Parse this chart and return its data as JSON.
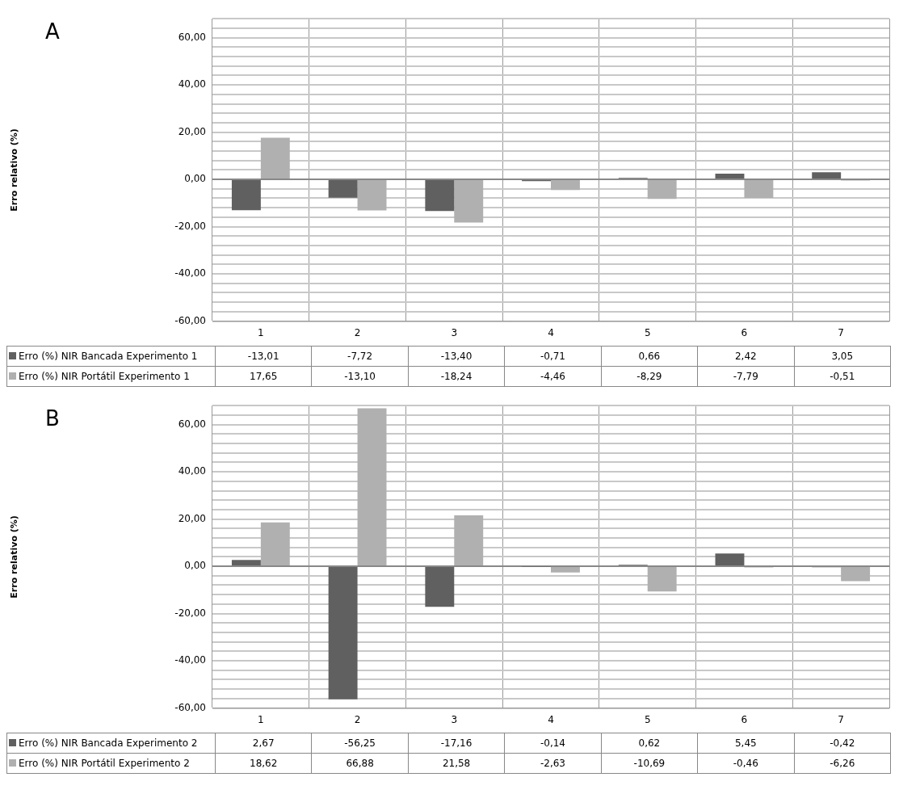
{
  "chart_data": [
    {
      "type": "bar",
      "title": "A",
      "ylabel": "Erro relativo (%)",
      "categories": [
        "1",
        "2",
        "3",
        "4",
        "5",
        "6",
        "7"
      ],
      "ylim": [
        -60,
        68
      ],
      "yticks": [
        {
          "value": -60,
          "label": "-60,00"
        },
        {
          "value": -56,
          "label": null
        },
        {
          "value": -52,
          "label": null
        },
        {
          "value": -48,
          "label": null
        },
        {
          "value": -44,
          "label": null
        },
        {
          "value": -40,
          "label": "-40,00"
        },
        {
          "value": -36,
          "label": null
        },
        {
          "value": -32,
          "label": null
        },
        {
          "value": -28,
          "label": null
        },
        {
          "value": -24,
          "label": null
        },
        {
          "value": -20,
          "label": "-20,00"
        },
        {
          "value": -16,
          "label": null
        },
        {
          "value": -12,
          "label": null
        },
        {
          "value": -8,
          "label": null
        },
        {
          "value": -4,
          "label": null
        },
        {
          "value": 0,
          "label": "0,00"
        },
        {
          "value": 4,
          "label": null
        },
        {
          "value": 8,
          "label": null
        },
        {
          "value": 12,
          "label": null
        },
        {
          "value": 16,
          "label": null
        },
        {
          "value": 20,
          "label": "20,00"
        },
        {
          "value": 24,
          "label": null
        },
        {
          "value": 28,
          "label": null
        },
        {
          "value": 32,
          "label": null
        },
        {
          "value": 36,
          "label": null
        },
        {
          "value": 40,
          "label": "40,00"
        },
        {
          "value": 44,
          "label": null
        },
        {
          "value": 48,
          "label": null
        },
        {
          "value": 52,
          "label": null
        },
        {
          "value": 56,
          "label": null
        },
        {
          "value": 60,
          "label": "60,00"
        },
        {
          "value": 64,
          "label": null
        },
        {
          "value": 68,
          "label": null
        }
      ],
      "grid": true,
      "legend": "bottom",
      "series": [
        {
          "name": "Erro (%) NIR Bancada Experimento 1",
          "color": "#606060",
          "values": [
            -13.01,
            -7.72,
            -13.4,
            -0.71,
            0.66,
            2.42,
            3.05
          ],
          "value_labels": [
            "-13,01",
            "-7,72",
            "-13,40",
            "-0,71",
            "0,66",
            "2,42",
            "3,05"
          ]
        },
        {
          "name": "Erro (%) NIR Portátil Experimento 1",
          "color": "#b0b0b0",
          "values": [
            17.65,
            -13.1,
            -18.24,
            -4.46,
            -8.29,
            -7.79,
            -0.51
          ],
          "value_labels": [
            "17,65",
            "-13,10",
            "-18,24",
            "-4,46",
            "-8,29",
            "-7,79",
            "-0,51"
          ]
        }
      ]
    },
    {
      "type": "bar",
      "title": "B",
      "ylabel": "Erro relativo (%)",
      "categories": [
        "1",
        "2",
        "3",
        "4",
        "5",
        "6",
        "7"
      ],
      "ylim": [
        -60,
        68
      ],
      "yticks": [
        {
          "value": -60,
          "label": "-60,00"
        },
        {
          "value": -56,
          "label": null
        },
        {
          "value": -52,
          "label": null
        },
        {
          "value": -48,
          "label": null
        },
        {
          "value": -44,
          "label": null
        },
        {
          "value": -40,
          "label": "-40,00"
        },
        {
          "value": -36,
          "label": null
        },
        {
          "value": -32,
          "label": null
        },
        {
          "value": -28,
          "label": null
        },
        {
          "value": -24,
          "label": null
        },
        {
          "value": -20,
          "label": "-20,00"
        },
        {
          "value": -16,
          "label": null
        },
        {
          "value": -12,
          "label": null
        },
        {
          "value": -8,
          "label": null
        },
        {
          "value": -4,
          "label": null
        },
        {
          "value": 0,
          "label": "0,00"
        },
        {
          "value": 4,
          "label": null
        },
        {
          "value": 8,
          "label": null
        },
        {
          "value": 12,
          "label": null
        },
        {
          "value": 16,
          "label": null
        },
        {
          "value": 20,
          "label": "20,00"
        },
        {
          "value": 24,
          "label": null
        },
        {
          "value": 28,
          "label": null
        },
        {
          "value": 32,
          "label": null
        },
        {
          "value": 36,
          "label": null
        },
        {
          "value": 40,
          "label": "40,00"
        },
        {
          "value": 44,
          "label": null
        },
        {
          "value": 48,
          "label": null
        },
        {
          "value": 52,
          "label": null
        },
        {
          "value": 56,
          "label": null
        },
        {
          "value": 60,
          "label": "60,00"
        },
        {
          "value": 64,
          "label": null
        },
        {
          "value": 68,
          "label": null
        }
      ],
      "grid": true,
      "legend": "bottom",
      "series": [
        {
          "name": "Erro (%) NIR Bancada Experimento 2",
          "color": "#606060",
          "values": [
            2.67,
            -56.25,
            -17.16,
            -0.14,
            0.62,
            5.45,
            -0.42
          ],
          "value_labels": [
            "2,67",
            "-56,25",
            "-17,16",
            "-0,14",
            "0,62",
            "5,45",
            "-0,42"
          ]
        },
        {
          "name": "Erro (%) NIR Portátil Experimento 2",
          "color": "#b0b0b0",
          "values": [
            18.62,
            66.88,
            21.58,
            -2.63,
            -10.69,
            -0.46,
            -6.26
          ],
          "value_labels": [
            "18,62",
            "66,88",
            "21,58",
            "-2,63",
            "-10,69",
            "-0,46",
            "-6,26"
          ]
        }
      ]
    }
  ]
}
